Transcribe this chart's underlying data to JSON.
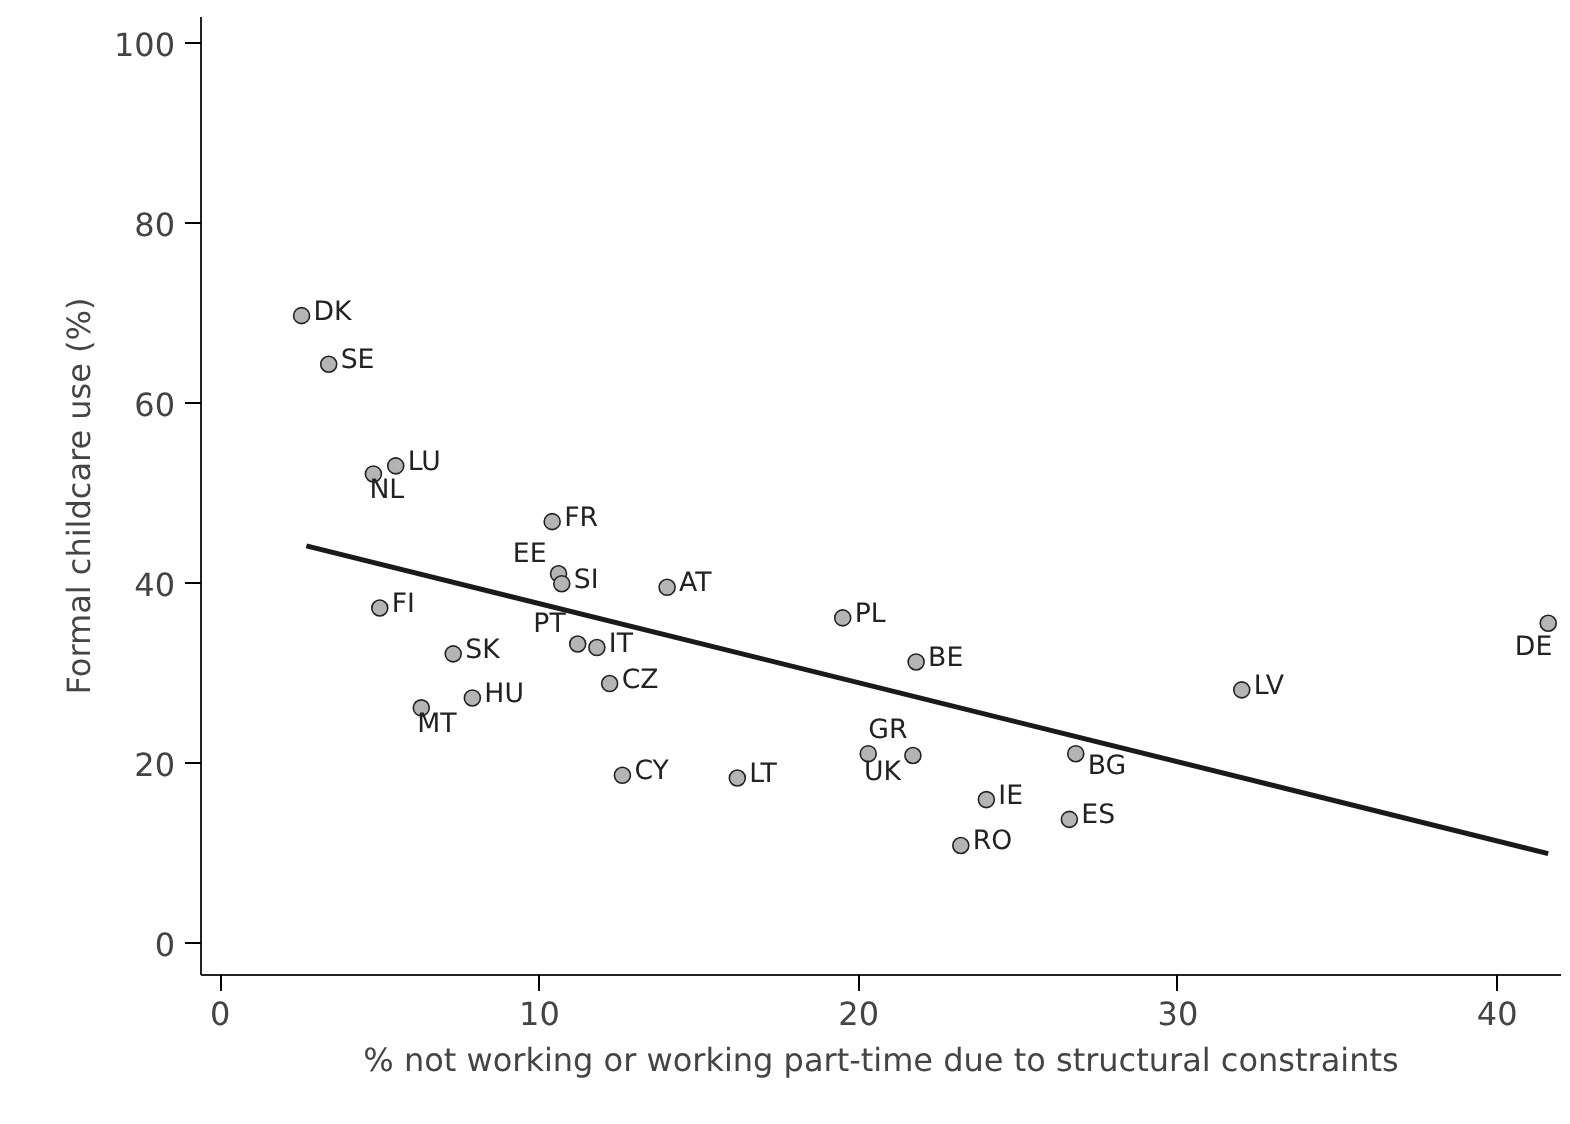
{
  "chart_data": {
    "type": "scatter",
    "xlabel": "% not working or working part-time due to structural constraints",
    "ylabel": "Formal childcare use (%)",
    "xlim": [
      -0.6,
      42
    ],
    "ylim": [
      -3.5,
      103
    ],
    "xticks": [
      0,
      10,
      20,
      30,
      40
    ],
    "yticks": [
      0,
      20,
      40,
      60,
      80,
      100
    ],
    "grid": false,
    "marker": "circle",
    "series": [
      {
        "color": "#b4b4b4",
        "x": [
          2.55,
          3.4,
          5.5,
          4.8,
          10.4,
          10.6,
          10.7,
          14.0,
          5.0,
          19.5,
          41.6,
          7.3,
          11.2,
          11.8,
          21.8,
          12.2,
          32.0,
          7.9,
          6.3,
          20.3,
          21.7,
          26.8,
          12.6,
          16.2,
          24.0,
          26.6,
          23.2
        ],
        "values": [
          69.8,
          64.4,
          53.1,
          52.2,
          46.9,
          41.1,
          40.0,
          39.6,
          37.3,
          36.2,
          35.6,
          32.2,
          33.3,
          32.9,
          31.3,
          28.9,
          28.2,
          27.3,
          26.2,
          21.1,
          20.9,
          21.1,
          18.7,
          18.4,
          16.0,
          13.8,
          10.9
        ]
      },
      {
        "type": "line",
        "marker": "none",
        "color": "#1a1a1a",
        "x": [
          2.7,
          41.6
        ],
        "values": [
          44.2,
          10.0
        ]
      }
    ],
    "annotations": [
      {
        "text": "DK",
        "x": 2.55,
        "y": 69.8
      },
      {
        "text": "SE",
        "x": 3.4,
        "y": 64.4
      },
      {
        "text": "LU",
        "x": 5.5,
        "y": 53.1
      },
      {
        "text": "NL",
        "x": 4.8,
        "y": 52.2
      },
      {
        "text": "FR",
        "x": 10.4,
        "y": 46.9
      },
      {
        "text": "EE",
        "x": 10.6,
        "y": 41.1
      },
      {
        "text": "SI",
        "x": 10.7,
        "y": 40.0
      },
      {
        "text": "AT",
        "x": 14.0,
        "y": 39.6
      },
      {
        "text": "FI",
        "x": 5.0,
        "y": 37.3
      },
      {
        "text": "PL",
        "x": 19.5,
        "y": 36.2
      },
      {
        "text": "DE",
        "x": 41.6,
        "y": 35.6
      },
      {
        "text": "SK",
        "x": 7.3,
        "y": 32.2
      },
      {
        "text": "PT",
        "x": 11.2,
        "y": 33.3
      },
      {
        "text": "IT",
        "x": 11.8,
        "y": 32.9
      },
      {
        "text": "BE",
        "x": 21.8,
        "y": 31.3
      },
      {
        "text": "CZ",
        "x": 12.2,
        "y": 28.9
      },
      {
        "text": "LV",
        "x": 32.0,
        "y": 28.2
      },
      {
        "text": "HU",
        "x": 7.9,
        "y": 27.3
      },
      {
        "text": "MT",
        "x": 6.3,
        "y": 26.2
      },
      {
        "text": "GR",
        "x": 20.3,
        "y": 21.1
      },
      {
        "text": "UK",
        "x": 21.7,
        "y": 20.9
      },
      {
        "text": "BG",
        "x": 26.8,
        "y": 21.1
      },
      {
        "text": "CY",
        "x": 12.6,
        "y": 18.7
      },
      {
        "text": "LT",
        "x": 16.2,
        "y": 18.4
      },
      {
        "text": "IE",
        "x": 24.0,
        "y": 16.0
      },
      {
        "text": "ES",
        "x": 26.6,
        "y": 13.8
      },
      {
        "text": "RO",
        "x": 23.2,
        "y": 10.9
      }
    ]
  }
}
